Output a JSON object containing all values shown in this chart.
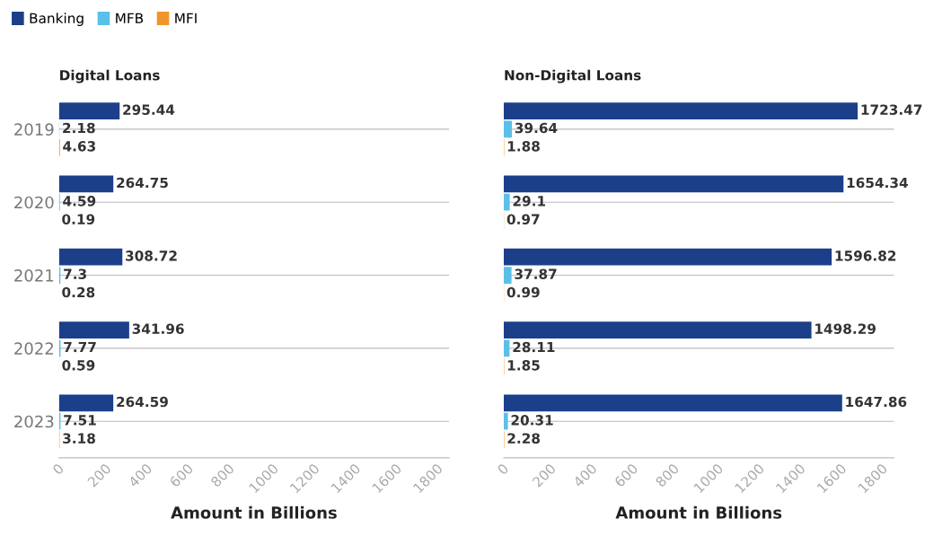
{
  "chart_data": [
    {
      "type": "bar",
      "orientation": "horizontal",
      "title": "Digital Loans",
      "xlabel": "Amount in Billions",
      "categories": [
        "2019",
        "2020",
        "2021",
        "2022",
        "2023"
      ],
      "xlim": [
        0,
        1900
      ],
      "xticks": [
        0,
        200,
        400,
        600,
        800,
        1000,
        1200,
        1400,
        1600,
        1800
      ],
      "grid": "y",
      "legend": "top left",
      "data_labels": true,
      "series": [
        {
          "name": "Banking",
          "color": "#1c3f8a",
          "values": [
            295.44,
            264.75,
            308.72,
            341.96,
            264.59
          ]
        },
        {
          "name": "MFB",
          "color": "#5bc0e8",
          "values": [
            2.18,
            4.59,
            7.3,
            7.77,
            7.51
          ]
        },
        {
          "name": "MFI",
          "color": "#f0952a",
          "values": [
            4.63,
            0.19,
            0.28,
            0.59,
            3.18
          ]
        }
      ]
    },
    {
      "type": "bar",
      "orientation": "horizontal",
      "title": "Non-Digital Loans",
      "xlabel": "Amount in Billions",
      "categories": [
        "2019",
        "2020",
        "2021",
        "2022",
        "2023"
      ],
      "xlim": [
        0,
        1900
      ],
      "xticks": [
        0,
        200,
        400,
        600,
        800,
        1000,
        1200,
        1400,
        1600,
        1800
      ],
      "grid": "y",
      "tick_labels": "x",
      "data_labels": true,
      "series": [
        {
          "name": "Banking",
          "color": "#1c3f8a",
          "values": [
            1723.47,
            1654.34,
            1596.82,
            1498.29,
            1647.86
          ]
        },
        {
          "name": "MFB",
          "color": "#5bc0e8",
          "values": [
            39.64,
            29.1,
            37.87,
            28.11,
            20.31
          ]
        },
        {
          "name": "MFI",
          "color": "#f0952a",
          "values": [
            1.88,
            0.97,
            0.99,
            1.85,
            2.28
          ]
        }
      ]
    }
  ]
}
